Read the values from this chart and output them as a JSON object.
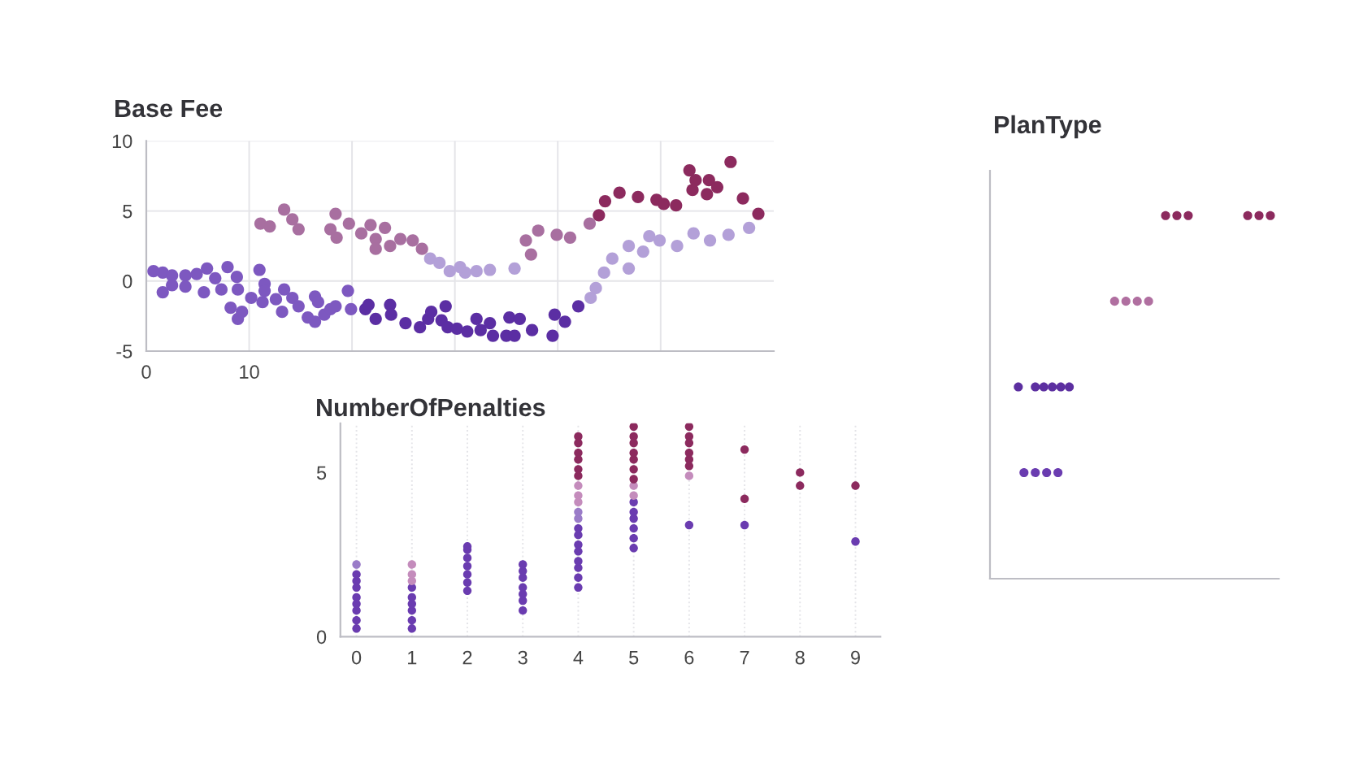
{
  "chart_data": [
    {
      "type": "scatter",
      "title": "Base Fee",
      "marker": "circle",
      "grid": true,
      "xlim": [
        0,
        61
      ],
      "xticks": [
        0,
        10,
        {
          "value": 20,
          "label": null
        },
        {
          "value": 30,
          "label": null
        },
        {
          "value": 40,
          "label": null
        },
        {
          "value": 50,
          "label": null
        }
      ],
      "ylim": [
        -5,
        10
      ],
      "yticks": [
        -5,
        0,
        5,
        10
      ],
      "series": [
        {
          "color": "#7d58c0",
          "x": [
            0.7,
            1.6,
            1.6,
            2.5,
            2.5,
            3.8,
            3.8,
            4.9,
            5.6,
            5.9,
            6.7,
            7.3,
            7.9,
            8.2,
            8.8,
            8.9,
            8.9,
            9.3,
            10.2,
            11.0,
            11.3,
            11.5,
            11.5,
            12.6,
            13.2,
            13.4,
            14.2,
            14.8,
            15.7,
            16.4,
            16.4,
            16.7,
            17.3,
            17.9,
            18.4,
            19.6,
            19.9
          ],
          "values": [
            0.7,
            -0.8,
            0.6,
            0.4,
            -0.3,
            0.4,
            -0.4,
            0.5,
            -0.8,
            0.9,
            0.2,
            -0.6,
            1.0,
            -1.9,
            0.3,
            -0.6,
            -2.7,
            -2.2,
            -1.2,
            0.8,
            -1.5,
            -0.2,
            -0.7,
            -1.3,
            -2.2,
            -0.6,
            -1.2,
            -1.8,
            -2.6,
            -2.9,
            -1.1,
            -1.5,
            -2.4,
            -2.0,
            -1.8,
            -0.7,
            -2.0
          ]
        },
        {
          "color": "#5b2ea3",
          "x": [
            21.3,
            21.6,
            22.3,
            23.7,
            23.8,
            25.2,
            26.6,
            27.4,
            27.7,
            28.7,
            29.1,
            29.3,
            30.2,
            31.2,
            32.1,
            32.5,
            33.4,
            33.7,
            35.0,
            35.3,
            35.8,
            36.3,
            37.5,
            39.5,
            39.7,
            40.7,
            42.0
          ],
          "values": [
            -2.0,
            -1.7,
            -2.7,
            -1.7,
            -2.4,
            -3.0,
            -3.3,
            -2.7,
            -2.2,
            -2.8,
            -1.8,
            -3.3,
            -3.4,
            -3.6,
            -2.7,
            -3.5,
            -3.0,
            -3.9,
            -3.9,
            -2.6,
            -3.9,
            -2.7,
            -3.5,
            -3.9,
            -2.4,
            -2.9,
            -1.8
          ]
        },
        {
          "color": "#b3a0d8",
          "x": [
            43.2,
            43.7,
            44.5,
            45.3,
            46.9,
            46.9,
            48.3,
            48.9,
            49.9,
            51.6,
            53.2,
            54.8,
            56.6,
            58.6,
            27.6,
            28.5,
            29.5,
            31.0,
            30.5,
            32.1,
            33.4,
            35.8
          ],
          "values": [
            -1.2,
            -0.5,
            0.6,
            1.6,
            0.9,
            2.5,
            2.1,
            3.2,
            2.9,
            2.5,
            3.4,
            2.9,
            3.3,
            3.8,
            1.6,
            1.3,
            0.7,
            0.6,
            1.0,
            0.7,
            0.8,
            0.9
          ]
        },
        {
          "color": "#a86fa0",
          "x": [
            11.1,
            12.0,
            13.4,
            14.2,
            14.8,
            17.9,
            18.4,
            18.5,
            19.7,
            20.9,
            21.8,
            22.3,
            22.3,
            23.2,
            23.7,
            24.7,
            25.9,
            26.8,
            36.9,
            37.4,
            38.1,
            39.9,
            41.2,
            43.1
          ],
          "values": [
            4.1,
            3.9,
            5.1,
            4.4,
            3.7,
            3.7,
            4.8,
            3.1,
            4.1,
            3.4,
            4.0,
            3.0,
            2.3,
            3.8,
            2.5,
            3.0,
            2.9,
            2.3,
            2.9,
            1.9,
            3.6,
            3.3,
            3.1,
            4.1
          ]
        },
        {
          "color": "#8c2a5e",
          "x": [
            44.0,
            44.6,
            46.0,
            47.8,
            49.6,
            50.3,
            51.5,
            52.8,
            53.1,
            53.4,
            54.5,
            54.7,
            55.5,
            56.8,
            58.0,
            59.5
          ],
          "values": [
            4.7,
            5.7,
            6.3,
            6.0,
            5.8,
            5.5,
            5.4,
            7.9,
            6.5,
            7.2,
            6.2,
            7.2,
            6.7,
            8.5,
            5.9,
            4.8
          ]
        }
      ]
    },
    {
      "type": "scatter",
      "title": "NumberOfPenalties",
      "marker": "circle",
      "grid": "x",
      "xlim": [
        -0.29,
        9.45
      ],
      "xticks": [
        0,
        1,
        2,
        3,
        4,
        5,
        6,
        7,
        8,
        9
      ],
      "ylim": [
        0,
        6.5
      ],
      "yticks": [
        0,
        5
      ],
      "series": [
        {
          "color": "#6a3cb0",
          "x": [
            0,
            0,
            0,
            0,
            0,
            0,
            0,
            0,
            1,
            1,
            1,
            1,
            1,
            1,
            2,
            2,
            2,
            2,
            2,
            2,
            2,
            3,
            3,
            3,
            3,
            3,
            3,
            3,
            4,
            4,
            4,
            4,
            4,
            4,
            4,
            4,
            5,
            5,
            5,
            5,
            5,
            5,
            6,
            7,
            9
          ],
          "values": [
            0.25,
            0.5,
            0.8,
            1.0,
            1.2,
            1.5,
            1.7,
            1.9,
            0.25,
            0.5,
            0.8,
            1.0,
            1.2,
            1.5,
            1.4,
            1.65,
            1.9,
            2.15,
            2.4,
            2.65,
            2.75,
            0.8,
            1.1,
            1.3,
            1.5,
            1.8,
            2.0,
            2.2,
            1.5,
            1.8,
            2.1,
            2.3,
            2.6,
            2.8,
            3.1,
            3.3,
            2.7,
            3.0,
            3.3,
            3.6,
            3.8,
            4.1,
            3.4,
            3.4,
            2.9
          ]
        },
        {
          "color": "#9a7cc8",
          "x": [
            0,
            4,
            4
          ],
          "values": [
            2.2,
            3.6,
            3.8
          ]
        },
        {
          "color": "#c48cbc",
          "x": [
            1,
            1,
            1,
            4,
            4,
            4,
            5,
            5,
            6
          ],
          "values": [
            1.7,
            1.9,
            2.2,
            4.1,
            4.3,
            4.6,
            4.3,
            4.6,
            4.9
          ]
        },
        {
          "color": "#8c2a5e",
          "x": [
            4,
            4,
            4,
            4,
            4,
            4,
            5,
            5,
            5,
            5,
            5,
            5,
            5,
            6,
            6,
            6,
            6,
            6,
            6,
            7,
            7,
            8,
            8,
            9
          ],
          "values": [
            4.9,
            5.1,
            5.4,
            5.6,
            5.9,
            6.1,
            4.8,
            5.1,
            5.4,
            5.6,
            5.9,
            6.1,
            6.4,
            5.2,
            5.4,
            5.6,
            5.9,
            6.1,
            6.4,
            5.7,
            4.2,
            5.0,
            4.6,
            4.6
          ]
        }
      ]
    },
    {
      "type": "other",
      "title": "PlanType"
    }
  ]
}
